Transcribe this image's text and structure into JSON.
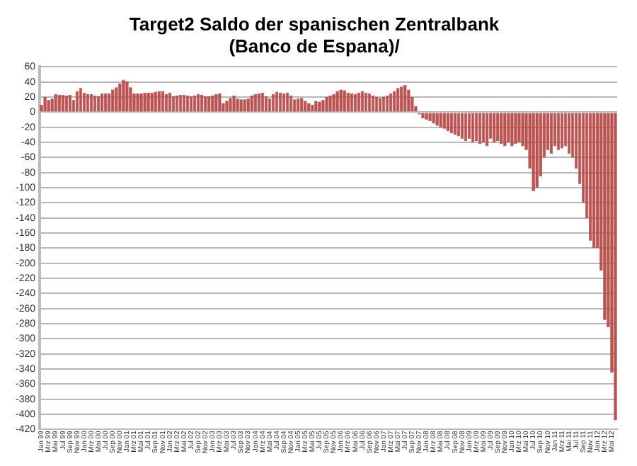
{
  "chart_data": {
    "type": "bar",
    "title": [
      "Target2 Saldo der spanischen Zentralbank",
      "(Banco de Espana)/"
    ],
    "categories": [
      "Jan 99",
      null,
      "Mrz 99",
      null,
      "Mai 99",
      null,
      "Jul 99",
      null,
      "Sep 99",
      null,
      "Nov 99",
      null,
      "Jan 00",
      null,
      "Mrz 00",
      null,
      "Mai 00",
      null,
      "Jul 00",
      null,
      "Sep 00",
      null,
      "Nov 00",
      null,
      "Jan 01",
      null,
      "Mrz 01",
      null,
      "Mai 01",
      null,
      "Jul 01",
      null,
      "Sep 01",
      null,
      "Nov 01",
      null,
      "Jan 02",
      null,
      "Mrz 02",
      null,
      "Mai 02",
      null,
      "Jul 02",
      null,
      "Sep 02",
      null,
      "Nov 02",
      null,
      "Jan 03",
      null,
      "Mrz 03",
      null,
      "Mai 03",
      null,
      "Jul 03",
      null,
      "Sep 03",
      null,
      "Nov 03",
      null,
      "Jan 04",
      null,
      "Mrz 04",
      null,
      "Mai 04",
      null,
      "Jul 04",
      null,
      "Sep 04",
      null,
      "Nov 04",
      null,
      "Jan 05",
      null,
      "Mrz 05",
      null,
      "Mai 05",
      null,
      "Jul 05",
      null,
      "Sep 05",
      null,
      "Nov 05",
      null,
      "Jan 06",
      null,
      "Mrz 06",
      null,
      "Mai 06",
      null,
      "Jul 06",
      null,
      "Sep 06",
      null,
      "Nov 06",
      null,
      "Jan 07",
      null,
      "Mrz 07",
      null,
      "Mai 07",
      null,
      "Jul 07",
      null,
      "Sep 07",
      null,
      "Nov 07",
      null,
      "Jan 08",
      null,
      "Mrz 08",
      null,
      "Mai 08",
      null,
      "Jul 08",
      null,
      "Sep 08",
      null,
      "Nov 08",
      null,
      "Jan 09",
      null,
      "Mrz 09",
      null,
      "Mai 09",
      null,
      "Jul 09",
      null,
      "Sep 09",
      null,
      "Nov 09",
      null,
      "Jan 10",
      null,
      "Mrz 10",
      null,
      "Mai 10",
      null,
      "Jul 10",
      null,
      "Sep 10",
      null,
      "Nov 10",
      null,
      "Jan 11",
      null,
      "Mrz 11",
      null,
      "Mai 11",
      null,
      "Jul 11",
      null,
      "Sep 11",
      null,
      "Nov 11",
      null,
      "Jan 12",
      null,
      "Mrz 12",
      null,
      "Mai 12",
      null
    ],
    "values": [
      10,
      20,
      16,
      18,
      24,
      23,
      23,
      22,
      23,
      16,
      28,
      32,
      26,
      24,
      24,
      22,
      21,
      25,
      25,
      25,
      30,
      33,
      38,
      43,
      41,
      33,
      25,
      25,
      25,
      26,
      26,
      26,
      27,
      28,
      28,
      24,
      26,
      21,
      22,
      23,
      23,
      22,
      21,
      22,
      24,
      23,
      21,
      21,
      22,
      24,
      25,
      12,
      15,
      19,
      22,
      18,
      17,
      17,
      18,
      22,
      24,
      25,
      26,
      21,
      18,
      24,
      27,
      26,
      25,
      26,
      22,
      17,
      18,
      19,
      15,
      12,
      10,
      15,
      14,
      16,
      20,
      22,
      24,
      28,
      30,
      29,
      26,
      25,
      24,
      26,
      28,
      26,
      25,
      22,
      20,
      19,
      20,
      22,
      25,
      28,
      32,
      34,
      36,
      30,
      20,
      8,
      -3,
      -8,
      -10,
      -12,
      -15,
      -18,
      -20,
      -22,
      -25,
      -28,
      -30,
      -32,
      -35,
      -38,
      -35,
      -40,
      -38,
      -42,
      -40,
      -45,
      -35,
      -40,
      -38,
      -42,
      -45,
      -40,
      -45,
      -42,
      -40,
      -45,
      -50,
      -75,
      -105,
      -100,
      -85,
      -60,
      -50,
      -55,
      -45,
      -50,
      -48,
      -45,
      -55,
      -60,
      -75,
      -95,
      -120,
      -140,
      -170,
      -180,
      -180,
      -210,
      -275,
      -285,
      -345,
      -408
    ],
    "color": "#c0504d",
    "ylim": [
      -420,
      60
    ],
    "yticks": [
      60,
      40,
      20,
      0,
      -20,
      -40,
      -60,
      -80,
      -100,
      -120,
      -140,
      -160,
      -180,
      -200,
      -220,
      -240,
      -260,
      -280,
      -300,
      -320,
      -340,
      -360,
      -380,
      -400,
      -420
    ],
    "grid": "y",
    "legend": false
  }
}
